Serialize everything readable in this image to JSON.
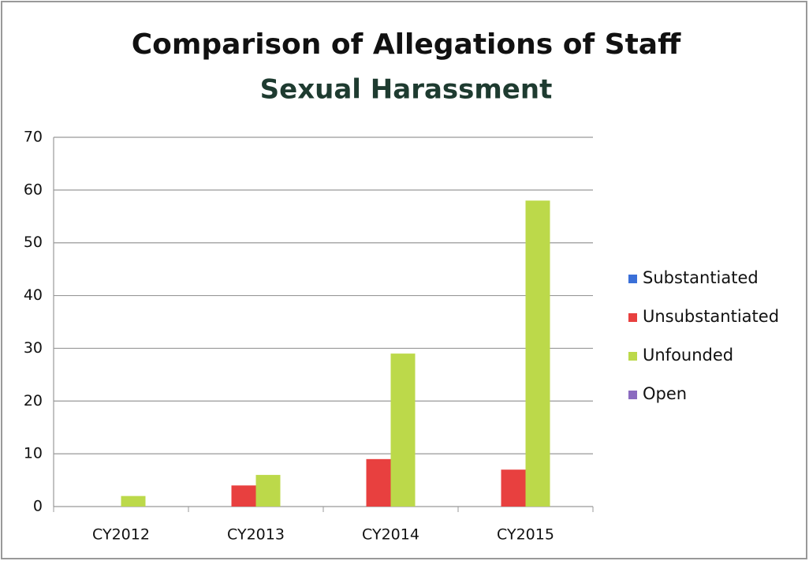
{
  "chart_data": {
    "type": "bar",
    "title": "Comparison of Allegations of Staff",
    "subtitle": "Sexual Harassment",
    "categories": [
      "CY2012",
      "CY2013",
      "CY2014",
      "CY2015"
    ],
    "series": [
      {
        "name": "Substantiated",
        "color": "#3a6fd8",
        "values": [
          0,
          0,
          0,
          0
        ]
      },
      {
        "name": "Unsubstantiated",
        "color": "#e8403f",
        "values": [
          0,
          4,
          9,
          7
        ]
      },
      {
        "name": "Unfounded",
        "color": "#bcd94a",
        "values": [
          2,
          6,
          29,
          58
        ]
      },
      {
        "name": "Open",
        "color": "#8b6bc0",
        "values": [
          0,
          0,
          0,
          0
        ]
      }
    ],
    "ylim": [
      0,
      70
    ],
    "yticks": [
      0,
      10,
      20,
      30,
      40,
      50,
      60,
      70
    ],
    "grid": true,
    "legend": "right"
  }
}
